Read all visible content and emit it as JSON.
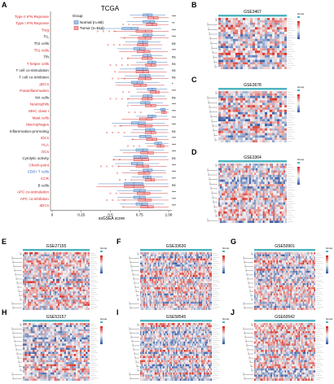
{
  "panels": {
    "A": {
      "letter": "A",
      "title": "TCGA",
      "xlabel": "ssGSEA score",
      "legend_title": "Group",
      "legend_normal": "Normal (n=58)",
      "legend_tumor": "Tumor (n=512)"
    },
    "B": {
      "letter": "B",
      "title": "GSE3467"
    },
    "C": {
      "letter": "C",
      "title": "GSE3678"
    },
    "D": {
      "letter": "D",
      "title": "GSE3364"
    },
    "E": {
      "letter": "E",
      "title": "GSE27155"
    },
    "F": {
      "letter": "F",
      "title": "GSE33630"
    },
    "G": {
      "letter": "G",
      "title": "GSE50901"
    },
    "H": {
      "letter": "H",
      "title": "GSE53157"
    },
    "I": {
      "letter": "I",
      "title": "GSE58545"
    },
    "J": {
      "letter": "J",
      "title": "GSE60542"
    }
  },
  "heatmap_legend_label": "Group",
  "colors": {
    "normal": "#4e86c4",
    "tumor": "#d94848",
    "high": "#d73027",
    "low": "#3b5fa7",
    "mid": "#f7f7f7",
    "bar": "#4fb3bf",
    "red_label": "#d92626",
    "blue_label": "#2b6cc4"
  },
  "chart_data": {
    "type": "boxplot",
    "title": "TCGA",
    "xlabel": "ssGSEA score",
    "xticks": [
      "0",
      "0.25",
      "0.5",
      "0.75",
      "1.00"
    ],
    "xlim": [
      0,
      1
    ],
    "series": [
      {
        "name": "Normal (n=58)"
      },
      {
        "name": "Tumor (n=512)"
      }
    ],
    "categories": [
      {
        "label": "Type II IFN Reponse",
        "color": "red",
        "sig": "***",
        "normal": [
          0.78,
          0.82,
          0.86
        ],
        "tumor": [
          0.82,
          0.87,
          0.91
        ]
      },
      {
        "label": "Type I IFN Reponse",
        "color": "red",
        "sig": "**",
        "normal": [
          0.78,
          0.84,
          0.88
        ],
        "tumor": [
          0.81,
          0.86,
          0.9
        ]
      },
      {
        "label": "Treg",
        "color": "red",
        "sig": "***",
        "normal": [
          0.6,
          0.68,
          0.74
        ],
        "tumor": [
          0.72,
          0.8,
          0.86
        ]
      },
      {
        "label": "TIL",
        "color": "black",
        "sig": "***",
        "normal": [
          0.78,
          0.82,
          0.86
        ],
        "tumor": [
          0.74,
          0.8,
          0.85
        ]
      },
      {
        "label": "Th2 cells",
        "color": "black",
        "sig": "ns",
        "normal": [
          0.74,
          0.78,
          0.82
        ],
        "tumor": [
          0.73,
          0.78,
          0.82
        ]
      },
      {
        "label": "Th1 cells",
        "color": "red",
        "sig": "***",
        "normal": [
          0.7,
          0.75,
          0.8
        ],
        "tumor": [
          0.73,
          0.79,
          0.84
        ]
      },
      {
        "label": "Tfh",
        "color": "black",
        "sig": "ns",
        "normal": [
          0.78,
          0.82,
          0.85
        ],
        "tumor": [
          0.77,
          0.82,
          0.86
        ]
      },
      {
        "label": "T helper cells",
        "color": "red",
        "sig": "ns",
        "normal": [
          0.82,
          0.86,
          0.89
        ],
        "tumor": [
          0.8,
          0.85,
          0.89
        ]
      },
      {
        "label": "T cell co-stimulation",
        "color": "black",
        "sig": "ns",
        "normal": [
          0.72,
          0.78,
          0.82
        ],
        "tumor": [
          0.72,
          0.78,
          0.83
        ]
      },
      {
        "label": "T cell co-inhibition",
        "color": "black",
        "sig": "ns",
        "normal": [
          0.75,
          0.8,
          0.84
        ],
        "tumor": [
          0.74,
          0.8,
          0.85
        ]
      },
      {
        "label": "pDCs",
        "color": "red",
        "sig": "*",
        "normal": [
          0.68,
          0.73,
          0.78
        ],
        "tumor": [
          0.7,
          0.76,
          0.81
        ]
      },
      {
        "label": "Parainflammation",
        "color": "red",
        "sig": "***",
        "normal": [
          0.82,
          0.86,
          0.89
        ],
        "tumor": [
          0.84,
          0.89,
          0.92
        ]
      },
      {
        "label": "NK cells",
        "color": "black",
        "sig": "ns",
        "normal": [
          0.78,
          0.82,
          0.86
        ],
        "tumor": [
          0.77,
          0.82,
          0.86
        ]
      },
      {
        "label": "Neutrophils",
        "color": "red",
        "sig": "***",
        "normal": [
          0.76,
          0.8,
          0.84
        ],
        "tumor": [
          0.8,
          0.85,
          0.89
        ]
      },
      {
        "label": "MHC class I",
        "color": "red",
        "sig": "***",
        "normal": [
          0.93,
          0.95,
          0.97
        ],
        "tumor": [
          0.94,
          0.96,
          0.98
        ]
      },
      {
        "label": "Mast cells",
        "color": "red",
        "sig": "***",
        "normal": [
          0.82,
          0.86,
          0.89
        ],
        "tumor": [
          0.75,
          0.81,
          0.86
        ]
      },
      {
        "label": "Macrophages",
        "color": "red",
        "sig": "***",
        "normal": [
          0.68,
          0.74,
          0.8
        ],
        "tumor": [
          0.74,
          0.8,
          0.86
        ]
      },
      {
        "label": "Inflammation-promoting",
        "color": "black",
        "sig": "ns",
        "normal": [
          0.8,
          0.84,
          0.88
        ],
        "tumor": [
          0.8,
          0.85,
          0.89
        ]
      },
      {
        "label": "iDCs",
        "color": "red",
        "sig": "***",
        "normal": [
          0.75,
          0.8,
          0.85
        ],
        "tumor": [
          0.81,
          0.86,
          0.9
        ]
      },
      {
        "label": "HLA",
        "color": "red",
        "sig": "***",
        "normal": [
          0.88,
          0.91,
          0.94
        ],
        "tumor": [
          0.9,
          0.93,
          0.96
        ]
      },
      {
        "label": "DCs",
        "color": "red",
        "sig": "***",
        "normal": [
          0.72,
          0.78,
          0.82
        ],
        "tumor": [
          0.76,
          0.82,
          0.87
        ]
      },
      {
        "label": "Cytolytic activity",
        "color": "black",
        "sig": "ns",
        "normal": [
          0.7,
          0.76,
          0.82
        ],
        "tumor": [
          0.7,
          0.77,
          0.83
        ]
      },
      {
        "label": "Check-point",
        "color": "red",
        "sig": "***",
        "normal": [
          0.68,
          0.73,
          0.78
        ],
        "tumor": [
          0.72,
          0.78,
          0.83
        ]
      },
      {
        "label": "CD8+ T cells",
        "color": "blue",
        "sig": "***",
        "normal": [
          0.78,
          0.82,
          0.86
        ],
        "tumor": [
          0.74,
          0.79,
          0.84
        ]
      },
      {
        "label": "CCR",
        "color": "red",
        "sig": "***",
        "normal": [
          0.78,
          0.82,
          0.85
        ],
        "tumor": [
          0.8,
          0.85,
          0.88
        ]
      },
      {
        "label": "B cells",
        "color": "black",
        "sig": "ns",
        "normal": [
          0.62,
          0.7,
          0.78
        ],
        "tumor": [
          0.62,
          0.7,
          0.79
        ]
      },
      {
        "label": "APC co-stimulation",
        "color": "red",
        "sig": "***",
        "normal": [
          0.7,
          0.75,
          0.8
        ],
        "tumor": [
          0.73,
          0.79,
          0.84
        ]
      },
      {
        "label": "APC co-inhibition",
        "color": "red",
        "sig": "***",
        "normal": [
          0.7,
          0.75,
          0.8
        ],
        "tumor": [
          0.74,
          0.8,
          0.85
        ]
      },
      {
        "label": "aDCs",
        "color": "red",
        "sig": "***",
        "normal": [
          0.72,
          0.77,
          0.82
        ],
        "tumor": [
          0.76,
          0.82,
          0.87
        ]
      }
    ]
  }
}
